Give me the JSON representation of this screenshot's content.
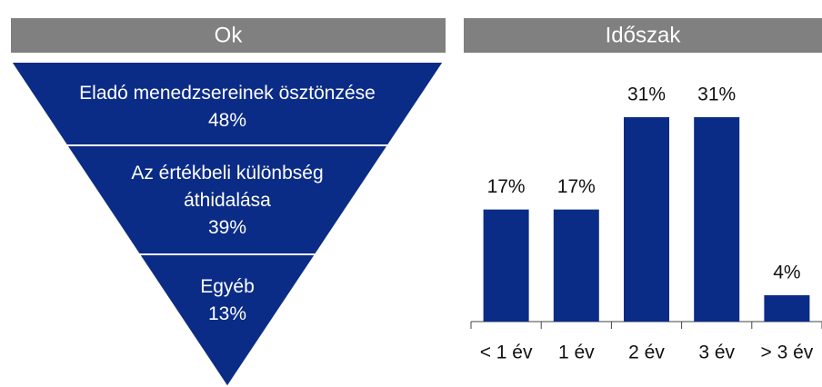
{
  "chart_data": [
    {
      "type": "funnel",
      "title": "Ok",
      "categories": [
        "Eladó menedzsereinek ösztönzése",
        "Az értékbeli különbség áthidalása",
        "Egyéb"
      ],
      "values": [
        48,
        39,
        13
      ],
      "value_labels": [
        "48%",
        "39%",
        "13%"
      ],
      "color": "#0b2c86"
    },
    {
      "type": "bar",
      "title": "Időszak",
      "categories": [
        "< 1 év",
        "1 év",
        "2 év",
        "3 év",
        "> 3 év"
      ],
      "values": [
        17,
        17,
        31,
        31,
        4
      ],
      "value_labels": [
        "17%",
        "17%",
        "31%",
        "31%",
        "4%"
      ],
      "color": "#0b2c86"
    }
  ]
}
